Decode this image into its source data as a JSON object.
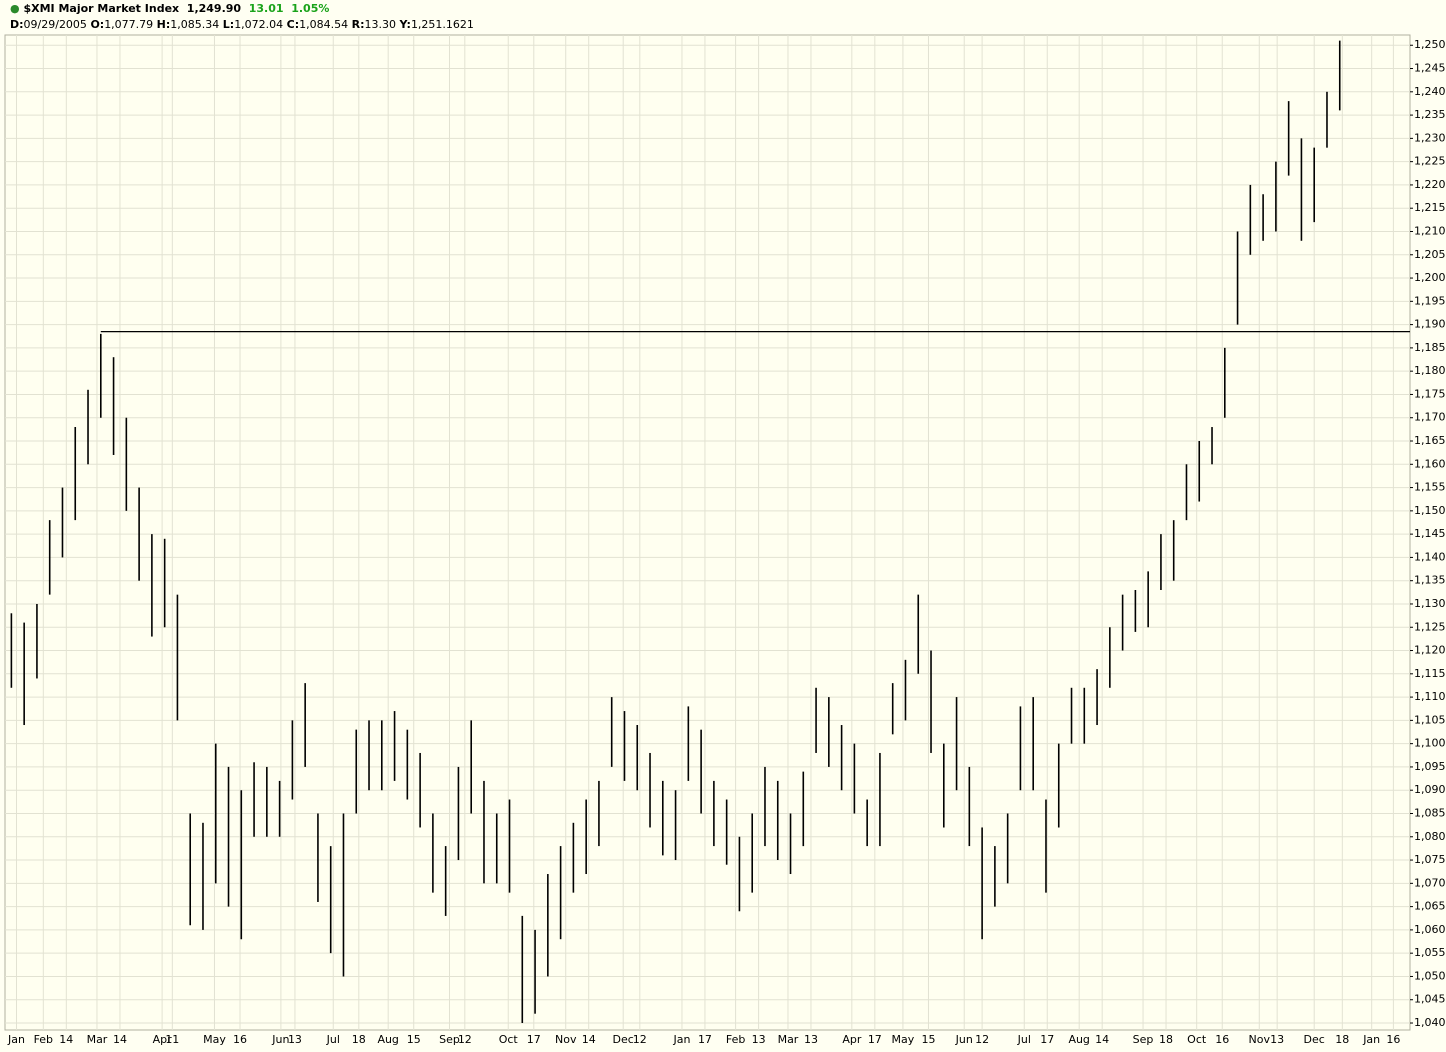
{
  "header": {
    "symbol": "$XMI Major Market Index",
    "last": "1,249.90",
    "change": "13.01",
    "change_pct": "1.05%",
    "info": [
      {
        "key": "D:",
        "value": "09/29/2005"
      },
      {
        "key": "O:",
        "value": "1,077.79"
      },
      {
        "key": "H:",
        "value": "1,085.34"
      },
      {
        "key": "L:",
        "value": "1,072.04"
      },
      {
        "key": "C:",
        "value": "1,084.54"
      },
      {
        "key": "R:",
        "value": "13.30"
      },
      {
        "key": "Y:",
        "value": "1,251.1621"
      }
    ]
  },
  "chart_data": {
    "type": "ohlc",
    "color": "#000000",
    "grid": true,
    "high": [
      1128,
      1126,
      1130,
      1148,
      1155,
      1168,
      1176,
      1188,
      1183,
      1170,
      1155,
      1145,
      1144,
      1132,
      1085,
      1083,
      1100,
      1095,
      1090,
      1096,
      1095,
      1092,
      1105,
      1113,
      1085,
      1078,
      1085,
      1103,
      1105,
      1105,
      1107,
      1103,
      1098,
      1085,
      1078,
      1095,
      1105,
      1092,
      1085,
      1088,
      1063,
      1060,
      1072,
      1078,
      1083,
      1088,
      1092,
      1110,
      1107,
      1104,
      1098,
      1092,
      1090,
      1108,
      1103,
      1092,
      1088,
      1080,
      1085,
      1095,
      1092,
      1085,
      1094,
      1112,
      1110,
      1104,
      1100,
      1088,
      1098,
      1113,
      1118,
      1132,
      1120,
      1100,
      1110,
      1095,
      1082,
      1078,
      1085,
      1108,
      1110,
      1088,
      1100,
      1112,
      1112,
      1116,
      1125,
      1132,
      1133,
      1137,
      1145,
      1148,
      1160,
      1165,
      1168,
      1185,
      1210,
      1220,
      1218,
      1225,
      1238,
      1230,
      1228,
      1240,
      1251
    ],
    "low": [
      1112,
      1104,
      1114,
      1132,
      1140,
      1148,
      1160,
      1170,
      1162,
      1150,
      1135,
      1123,
      1125,
      1105,
      1061,
      1060,
      1070,
      1065,
      1058,
      1080,
      1080,
      1080,
      1088,
      1095,
      1066,
      1055,
      1050,
      1085,
      1090,
      1090,
      1092,
      1088,
      1082,
      1068,
      1063,
      1075,
      1085,
      1070,
      1070,
      1068,
      1040,
      1042,
      1050,
      1058,
      1068,
      1072,
      1078,
      1095,
      1092,
      1090,
      1082,
      1076,
      1075,
      1092,
      1085,
      1078,
      1074,
      1064,
      1068,
      1078,
      1075,
      1072,
      1078,
      1098,
      1095,
      1090,
      1085,
      1078,
      1078,
      1102,
      1105,
      1115,
      1098,
      1082,
      1090,
      1078,
      1058,
      1065,
      1070,
      1090,
      1090,
      1068,
      1082,
      1100,
      1100,
      1104,
      1112,
      1120,
      1124,
      1125,
      1133,
      1135,
      1148,
      1152,
      1160,
      1170,
      1190,
      1205,
      1208,
      1210,
      1222,
      1208,
      1212,
      1228,
      1236
    ],
    "reference_line": {
      "value": 1188.5,
      "x_start": 7
    },
    "xlim": [
      -0.5,
      109.5
    ],
    "ylim": [
      1038.5,
      1252.2
    ],
    "xticks": [
      {
        "value": 0.4,
        "label": "Jan"
      },
      {
        "value": 2.5,
        "label": "Feb"
      },
      {
        "value": 4.3,
        "label": "14"
      },
      {
        "value": 6.7,
        "label": "Mar"
      },
      {
        "value": 8.5,
        "label": "14"
      },
      {
        "value": 11.8,
        "label": "Apr"
      },
      {
        "value": 12.6,
        "label": "11"
      },
      {
        "value": 15.9,
        "label": "May"
      },
      {
        "value": 17.9,
        "label": "16"
      },
      {
        "value": 21.1,
        "label": "Jun"
      },
      {
        "value": 22.2,
        "label": "13"
      },
      {
        "value": 25.2,
        "label": "Jul"
      },
      {
        "value": 27.2,
        "label": "18"
      },
      {
        "value": 29.5,
        "label": "Aug"
      },
      {
        "value": 31.5,
        "label": "15"
      },
      {
        "value": 34.3,
        "label": "Sep"
      },
      {
        "value": 35.5,
        "label": "12"
      },
      {
        "value": 38.9,
        "label": "Oct"
      },
      {
        "value": 40.9,
        "label": "17"
      },
      {
        "value": 43.4,
        "label": "Nov"
      },
      {
        "value": 45.2,
        "label": "14"
      },
      {
        "value": 47.9,
        "label": "Dec"
      },
      {
        "value": 49.2,
        "label": "12"
      },
      {
        "value": 52.5,
        "label": "Jan"
      },
      {
        "value": 54.3,
        "label": "17"
      },
      {
        "value": 56.7,
        "label": "Feb"
      },
      {
        "value": 58.5,
        "label": "13"
      },
      {
        "value": 60.8,
        "label": "Mar"
      },
      {
        "value": 62.6,
        "label": "13"
      },
      {
        "value": 65.8,
        "label": "Apr"
      },
      {
        "value": 67.6,
        "label": "17"
      },
      {
        "value": 69.8,
        "label": "May"
      },
      {
        "value": 71.8,
        "label": "15"
      },
      {
        "value": 74.6,
        "label": "Jun"
      },
      {
        "value": 76,
        "label": "12"
      },
      {
        "value": 79.3,
        "label": "Jul"
      },
      {
        "value": 81.1,
        "label": "17"
      },
      {
        "value": 83.6,
        "label": "Aug"
      },
      {
        "value": 85.4,
        "label": "14"
      },
      {
        "value": 88.6,
        "label": "Sep"
      },
      {
        "value": 90.4,
        "label": "18"
      },
      {
        "value": 92.8,
        "label": "Oct"
      },
      {
        "value": 94.8,
        "label": "16"
      },
      {
        "value": 97.7,
        "label": "Nov"
      },
      {
        "value": 99.1,
        "label": "13"
      },
      {
        "value": 102,
        "label": "Dec"
      },
      {
        "value": 104.2,
        "label": "18"
      },
      {
        "value": 106.5,
        "label": "Jan"
      },
      {
        "value": 108.2,
        "label": "16"
      }
    ],
    "yticks": [
      {
        "value": 1040,
        "label": "1,040"
      },
      {
        "value": 1045,
        "label": "1,045"
      },
      {
        "value": 1050,
        "label": "1,050"
      },
      {
        "value": 1055,
        "label": "1,055"
      },
      {
        "value": 1060,
        "label": "1,060"
      },
      {
        "value": 1065,
        "label": "1,065"
      },
      {
        "value": 1070,
        "label": "1,070"
      },
      {
        "value": 1075,
        "label": "1,075"
      },
      {
        "value": 1080,
        "label": "1,080"
      },
      {
        "value": 1085,
        "label": "1,085"
      },
      {
        "value": 1090,
        "label": "1,090"
      },
      {
        "value": 1095,
        "label": "1,095"
      },
      {
        "value": 1100,
        "label": "1,100"
      },
      {
        "value": 1105,
        "label": "1,105"
      },
      {
        "value": 1110,
        "label": "1,110"
      },
      {
        "value": 1115,
        "label": "1,115"
      },
      {
        "value": 1120,
        "label": "1,120"
      },
      {
        "value": 1125,
        "label": "1,125"
      },
      {
        "value": 1130,
        "label": "1,130"
      },
      {
        "value": 1135,
        "label": "1,135"
      },
      {
        "value": 1140,
        "label": "1,140"
      },
      {
        "value": 1145,
        "label": "1,145"
      },
      {
        "value": 1150,
        "label": "1,150"
      },
      {
        "value": 1155,
        "label": "1,155"
      },
      {
        "value": 1160,
        "label": "1,160"
      },
      {
        "value": 1165,
        "label": "1,165"
      },
      {
        "value": 1170,
        "label": "1,170"
      },
      {
        "value": 1175,
        "label": "1,175"
      },
      {
        "value": 1180,
        "label": "1,180"
      },
      {
        "value": 1185,
        "label": "1,185"
      },
      {
        "value": 1190,
        "label": "1,190"
      },
      {
        "value": 1195,
        "label": "1,195"
      },
      {
        "value": 1200,
        "label": "1,200"
      },
      {
        "value": 1205,
        "label": "1,205"
      },
      {
        "value": 1210,
        "label": "1,210"
      },
      {
        "value": 1215,
        "label": "1,215"
      },
      {
        "value": 1220,
        "label": "1,220"
      },
      {
        "value": 1225,
        "label": "1,225"
      },
      {
        "value": 1230,
        "label": "1,230"
      },
      {
        "value": 1235,
        "label": "1,235"
      },
      {
        "value": 1240,
        "label": "1,240"
      },
      {
        "value": 1245,
        "label": "1,245"
      },
      {
        "value": 1250,
        "label": "1,250"
      }
    ]
  }
}
